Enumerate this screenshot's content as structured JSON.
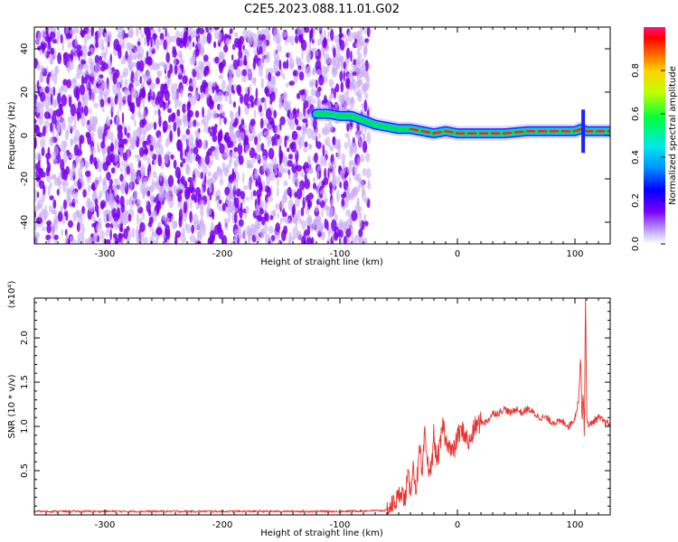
{
  "title": "C2E5.2023.088.11.01.G02",
  "colors": {
    "snr_line": "#e8322e",
    "scatter": "#7a00f0",
    "ridge_high": "#ff2020",
    "ridge_mid": "#00e060",
    "ridge_low": "#00c8ff"
  },
  "chart_data": [
    {
      "type": "heatmap",
      "xlabel": "Height of straight line (km)",
      "ylabel": "Frequency (Hz)",
      "xlim": [
        -360,
        130
      ],
      "ylim": [
        -50,
        50
      ],
      "x_ticks": [
        -300,
        -200,
        -100,
        0,
        100
      ],
      "y_ticks": [
        -40,
        -20,
        0,
        20,
        40
      ],
      "grid": false,
      "colorbar": {
        "label": "Normalized spectral amplitude",
        "range": [
          0,
          1
        ],
        "ticks": [
          0.0,
          0.2,
          0.4,
          0.6,
          0.8
        ],
        "colormap": "rainbow"
      },
      "noise_region_x": [
        -360,
        -75
      ],
      "ridge": {
        "x": [
          -120,
          -110,
          -100,
          -90,
          -80,
          -70,
          -60,
          -50,
          -40,
          -30,
          -20,
          -10,
          0,
          10,
          20,
          40,
          60,
          80,
          100,
          105,
          110,
          130
        ],
        "y": [
          10,
          10,
          9,
          9,
          7,
          5,
          4,
          3,
          3,
          2,
          1,
          2,
          1,
          1,
          1,
          1,
          2,
          2,
          2,
          3,
          2,
          2
        ]
      }
    },
    {
      "type": "line",
      "xlabel": "Height of straight line (km)",
      "ylabel": "SNR (10 * v/v)",
      "y_multiplier": "(x10⁴)",
      "xlim": [
        -360,
        130
      ],
      "ylim": [
        0,
        2.45
      ],
      "x_ticks": [
        -300,
        -200,
        -100,
        0,
        100
      ],
      "y_ticks": [
        0.5,
        1.0,
        1.5,
        2.0
      ],
      "grid": false,
      "series": [
        {
          "x": [
            -360,
            -300,
            -200,
            -100,
            -60,
            -55,
            -50,
            -48,
            -45,
            -42,
            -40,
            -38,
            -35,
            -32,
            -30,
            -28,
            -25,
            -22,
            -20,
            -18,
            -15,
            -12,
            -10,
            -8,
            -5,
            -2,
            0,
            5,
            10,
            15,
            20,
            25,
            30,
            35,
            40,
            45,
            50,
            55,
            60,
            65,
            70,
            75,
            80,
            85,
            90,
            95,
            100,
            103,
            105,
            106,
            107,
            108,
            109,
            110,
            112,
            115,
            120,
            125,
            130
          ],
          "y": [
            0.04,
            0.04,
            0.04,
            0.04,
            0.05,
            0.12,
            0.2,
            0.3,
            0.15,
            0.45,
            0.25,
            0.55,
            0.3,
            0.75,
            0.4,
            0.9,
            0.55,
            0.5,
            0.95,
            0.6,
            0.75,
            1.05,
            0.8,
            0.85,
            0.7,
            0.75,
            0.9,
            0.95,
            0.8,
            1.0,
            1.05,
            1.05,
            1.15,
            1.15,
            1.2,
            1.15,
            1.2,
            1.15,
            1.2,
            1.15,
            1.1,
            1.1,
            1.05,
            1.05,
            1.05,
            1.0,
            1.1,
            1.3,
            1.8,
            1.05,
            1.4,
            0.9,
            2.45,
            1.1,
            1.0,
            1.05,
            1.1,
            1.05,
            1.02
          ]
        }
      ]
    }
  ]
}
